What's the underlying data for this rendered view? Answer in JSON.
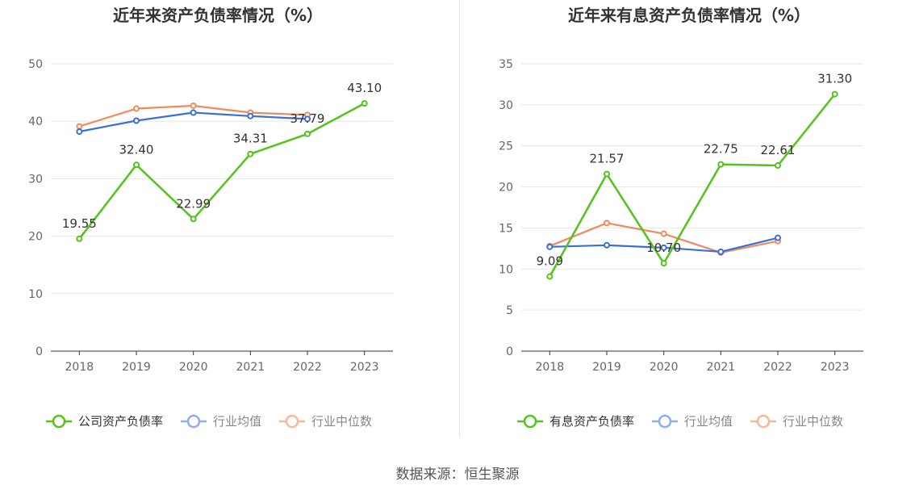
{
  "footer": "数据来源：恒生聚源",
  "chart_data": [
    {
      "type": "line",
      "title": "近年来资产负债率情况（%）",
      "categories": [
        "2018",
        "2019",
        "2020",
        "2021",
        "2022",
        "2023"
      ],
      "ylim": [
        0,
        50
      ],
      "yticks": [
        0,
        10,
        20,
        30,
        40,
        50
      ],
      "grid": true,
      "legend_position": "bottom",
      "series": [
        {
          "name": "公司资产负债率",
          "color": "#52c41a",
          "values": [
            19.55,
            32.4,
            22.99,
            34.31,
            37.79,
            43.1
          ],
          "labels": [
            "19.55",
            "32.40",
            "22.99",
            "34.31",
            "37.79",
            "43.10"
          ]
        },
        {
          "name": "行业均值",
          "color": "#3a6fd8",
          "values": [
            38.2,
            40.1,
            41.5,
            40.9,
            40.4,
            null
          ]
        },
        {
          "name": "行业中位数",
          "color": "#f08a5d",
          "values": [
            39.1,
            42.2,
            42.7,
            41.5,
            41.1,
            null
          ]
        }
      ]
    },
    {
      "type": "line",
      "title": "近年来有息资产负债率情况（%）",
      "categories": [
        "2018",
        "2019",
        "2020",
        "2021",
        "2022",
        "2023"
      ],
      "ylim": [
        0,
        35
      ],
      "yticks": [
        0,
        5,
        10,
        15,
        20,
        25,
        30,
        35
      ],
      "grid": true,
      "legend_position": "bottom",
      "series": [
        {
          "name": "有息资产负债率",
          "color": "#52c41a",
          "values": [
            9.09,
            21.57,
            10.7,
            22.75,
            22.61,
            31.3
          ],
          "labels": [
            "9.09",
            "21.57",
            "10.70",
            "22.75",
            "22.61",
            "31.30"
          ]
        },
        {
          "name": "行业均值",
          "color": "#3a6fd8",
          "values": [
            12.7,
            12.9,
            12.6,
            12.1,
            13.8,
            null
          ]
        },
        {
          "name": "行业中位数",
          "color": "#f08a5d",
          "values": [
            12.8,
            15.6,
            14.3,
            12.0,
            13.4,
            null
          ]
        }
      ]
    }
  ]
}
